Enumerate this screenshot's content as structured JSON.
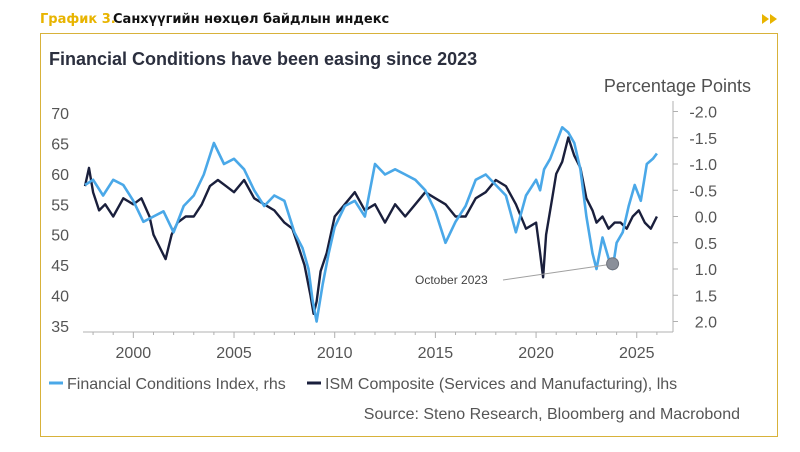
{
  "header": {
    "graph_number": "График 3.",
    "graph_title": "Санхүүгийн нөхцөл байдлын индекс"
  },
  "colors": {
    "fci": "#4aa8e8",
    "ism": "#1a1f3c",
    "accent": "#e8b400",
    "frame": "#d8b23a",
    "text": "#4a4a4a"
  },
  "chart_data": {
    "type": "line",
    "title": "Financial Conditions have been easing since 2023",
    "right_axis_label": "Percentage Points",
    "source": "Source: Steno Research, Bloomberg and Macrobond",
    "annotation": {
      "text": "October 2023",
      "x": 2023.8,
      "y_rhs": 0.9
    },
    "x_range": [
      1997.5,
      2026.8
    ],
    "x_ticks": [
      2000,
      2005,
      2010,
      2015,
      2020,
      2025
    ],
    "x_tick_labels": [
      "2000",
      "2005",
      "2010",
      "2015",
      "2020",
      "2025"
    ],
    "left_axis": {
      "ylim": [
        34,
        72
      ],
      "ticks": [
        35,
        40,
        45,
        50,
        55,
        60,
        65,
        70
      ],
      "tick_labels": [
        "35",
        "40",
        "45",
        "50",
        "55",
        "60",
        "65",
        "70"
      ]
    },
    "right_axis": {
      "inverted": true,
      "ylim": [
        -2.2,
        2.2
      ],
      "ticks": [
        -2.0,
        -1.5,
        -1.0,
        -0.5,
        0.0,
        0.5,
        1.0,
        1.5,
        2.0
      ],
      "tick_labels": [
        "-2.0",
        "-1.5",
        "-1.0",
        "-0.5",
        "0.0",
        "0.5",
        "1.0",
        "1.5",
        "2.0"
      ]
    },
    "legend": [
      "Financial Conditions Index, rhs",
      "ISM Composite (Services and Manufacturing), lhs"
    ],
    "series": [
      {
        "name": "Financial Conditions Index, rhs",
        "axis": "right",
        "x": [
          1997.6,
          1998.0,
          1998.5,
          1999.0,
          1999.5,
          2000.0,
          2000.5,
          2001.0,
          2001.5,
          2002.0,
          2002.5,
          2003.0,
          2003.5,
          2004.0,
          2004.5,
          2005.0,
          2005.5,
          2006.0,
          2006.5,
          2007.0,
          2007.5,
          2008.0,
          2008.4,
          2008.7,
          2008.9,
          2009.1,
          2009.4,
          2009.7,
          2010.0,
          2010.5,
          2011.0,
          2011.5,
          2012.0,
          2012.5,
          2013.0,
          2013.5,
          2014.0,
          2014.5,
          2015.0,
          2015.5,
          2016.0,
          2016.5,
          2017.0,
          2017.5,
          2018.0,
          2018.5,
          2019.0,
          2019.5,
          2020.0,
          2020.2,
          2020.4,
          2020.7,
          2021.0,
          2021.3,
          2021.6,
          2021.9,
          2022.2,
          2022.5,
          2022.8,
          2023.0,
          2023.3,
          2023.6,
          2023.8,
          2024.0,
          2024.3,
          2024.6,
          2024.9,
          2025.2,
          2025.5,
          2025.8,
          2026.0
        ],
        "values": [
          -0.6,
          -0.7,
          -0.4,
          -0.7,
          -0.6,
          -0.3,
          0.1,
          0.0,
          -0.1,
          0.3,
          -0.2,
          -0.4,
          -0.8,
          -1.4,
          -1.0,
          -1.1,
          -0.9,
          -0.5,
          -0.2,
          -0.4,
          -0.3,
          0.3,
          0.6,
          1.0,
          1.6,
          2.0,
          1.3,
          0.7,
          0.2,
          -0.2,
          -0.3,
          0.0,
          -1.0,
          -0.8,
          -0.9,
          -0.8,
          -0.7,
          -0.5,
          -0.1,
          0.5,
          0.1,
          -0.2,
          -0.7,
          -0.8,
          -0.6,
          -0.4,
          0.3,
          -0.4,
          -0.7,
          -0.5,
          -0.9,
          -1.1,
          -1.4,
          -1.7,
          -1.6,
          -1.4,
          -0.9,
          0.0,
          0.7,
          1.0,
          0.4,
          0.8,
          1.0,
          0.5,
          0.3,
          -0.2,
          -0.6,
          -0.3,
          -1.0,
          -1.1,
          -1.2
        ]
      },
      {
        "name": "ISM Composite (Services and Manufacturing), lhs",
        "axis": "left",
        "x": [
          1997.6,
          1997.8,
          1998.0,
          1998.3,
          1998.6,
          1999.0,
          1999.5,
          2000.0,
          2000.4,
          2000.8,
          2001.0,
          2001.3,
          2001.6,
          2001.9,
          2002.2,
          2002.6,
          2003.0,
          2003.4,
          2003.8,
          2004.2,
          2004.6,
          2005.0,
          2005.5,
          2006.0,
          2006.5,
          2007.0,
          2007.5,
          2007.9,
          2008.2,
          2008.5,
          2008.8,
          2008.95,
          2009.1,
          2009.3,
          2009.6,
          2010.0,
          2010.5,
          2011.0,
          2011.5,
          2012.0,
          2012.5,
          2013.0,
          2013.5,
          2014.0,
          2014.5,
          2015.0,
          2015.5,
          2016.0,
          2016.5,
          2017.0,
          2017.5,
          2018.0,
          2018.5,
          2019.0,
          2019.5,
          2020.0,
          2020.2,
          2020.35,
          2020.5,
          2020.8,
          2021.0,
          2021.3,
          2021.6,
          2021.9,
          2022.2,
          2022.5,
          2022.8,
          2023.0,
          2023.3,
          2023.6,
          2023.9,
          2024.2,
          2024.5,
          2024.8,
          2025.1,
          2025.4,
          2025.7,
          2026.0
        ],
        "values": [
          58,
          61,
          57,
          54,
          55,
          53,
          56,
          55,
          56,
          53,
          50,
          48,
          46,
          50,
          52,
          53,
          53,
          55,
          58,
          59,
          58,
          57,
          59,
          56,
          55,
          54,
          52,
          51,
          48,
          45,
          40,
          37,
          39,
          44,
          47,
          53,
          55,
          57,
          54,
          55,
          52,
          55,
          53,
          55,
          57,
          56,
          55,
          53,
          53,
          56,
          57,
          59,
          58,
          55,
          51,
          52,
          47,
          43,
          50,
          56,
          60,
          62,
          66,
          63,
          61,
          56,
          54,
          52,
          53,
          51,
          52,
          52,
          51,
          53,
          54,
          52,
          51,
          53
        ]
      }
    ]
  }
}
